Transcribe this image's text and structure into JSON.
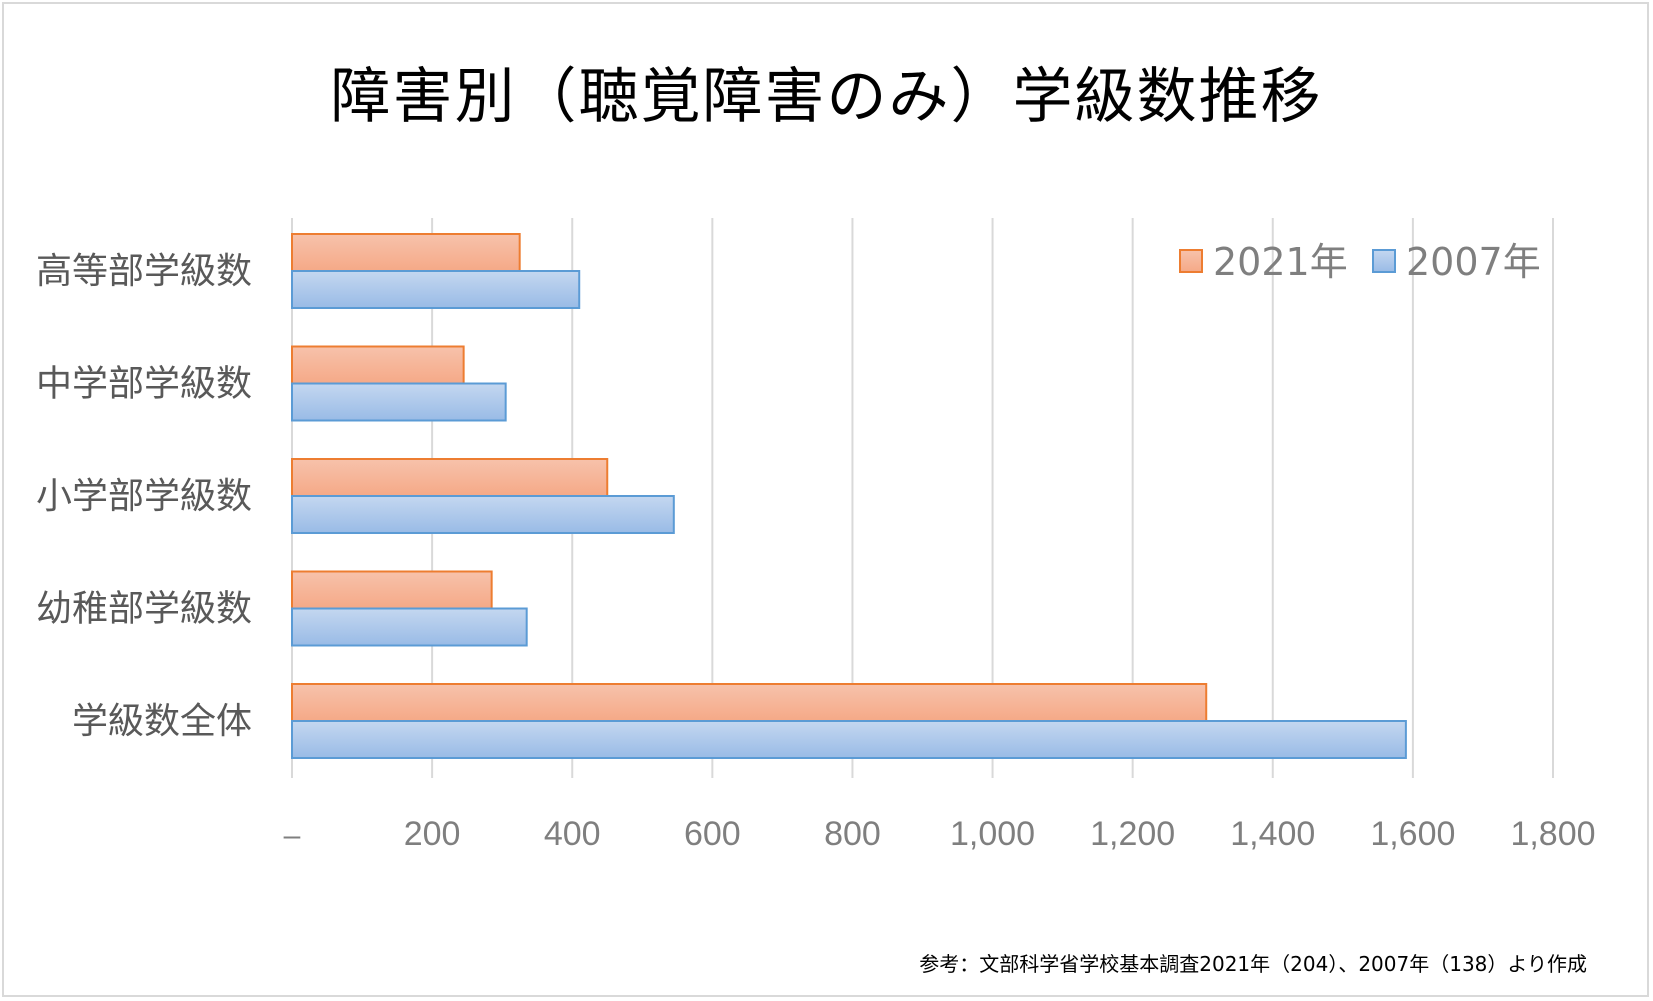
{
  "chart_data": {
    "type": "bar",
    "orientation": "horizontal",
    "title": "障害別（聴覚障害のみ）学級数推移",
    "categories": [
      "高等部学級数",
      "中学部学級数",
      "小学部学級数",
      "幼稚部学級数",
      "学級数全体"
    ],
    "series": [
      {
        "name": "2021年",
        "values": [
          325,
          245,
          450,
          285,
          1305
        ]
      },
      {
        "name": "2007年",
        "values": [
          410,
          305,
          545,
          335,
          1590
        ]
      }
    ],
    "x_ticks": [
      0,
      200,
      400,
      600,
      800,
      1000,
      1200,
      1400,
      1600,
      1800
    ],
    "x_tick_labels": [
      "–",
      "200",
      "400",
      "600",
      "800",
      "1,000",
      "1,200",
      "1,400",
      "1,600",
      "1,800"
    ],
    "xlim": [
      0,
      1800
    ],
    "xlabel": "",
    "ylabel": "",
    "grid": true,
    "legend_position": "top-right",
    "colors": {
      "2021年": {
        "fill_top": "#f7c2ab",
        "fill_bottom": "#f5a987",
        "stroke": "#ed7d31"
      },
      "2007年": {
        "fill_top": "#c4d7f0",
        "fill_bottom": "#99bbe6",
        "stroke": "#5b9bd5"
      }
    },
    "source_note": "参考：文部科学省学校基本調査2021年（204）、2007年（138）より作成"
  }
}
